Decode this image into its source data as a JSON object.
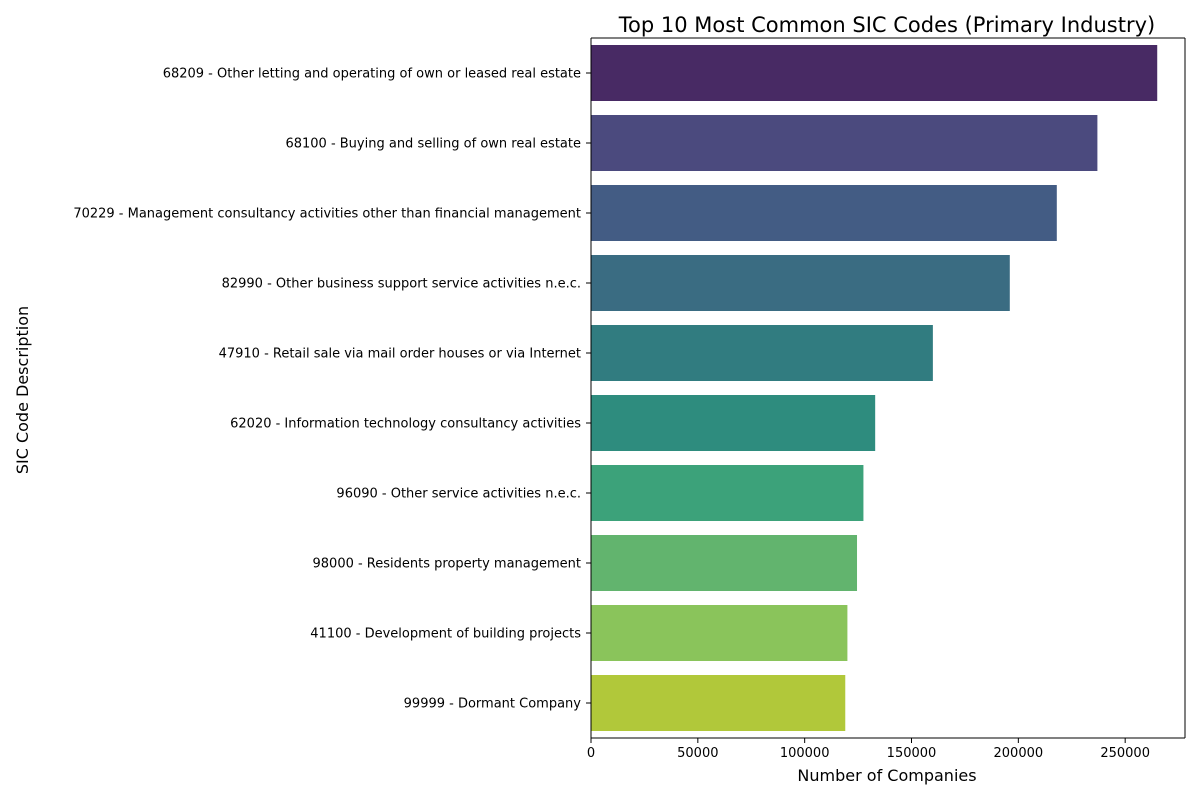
{
  "chart_data": {
    "type": "bar",
    "orientation": "horizontal",
    "title": "Top 10 Most Common SIC Codes (Primary Industry)",
    "xlabel": "Number of Companies",
    "ylabel": "SIC Code Description",
    "xlim": [
      0,
      278000
    ],
    "xticks": [
      0,
      50000,
      100000,
      150000,
      200000,
      250000
    ],
    "xtick_labels": [
      "0",
      "50000",
      "100000",
      "150000",
      "200000",
      "250000"
    ],
    "grid": false,
    "categories": [
      "68209 - Other letting and operating of own or leased real estate",
      "68100 - Buying and selling of own real estate",
      "70229 - Management consultancy activities other than financial management",
      "82990 - Other business support service activities n.e.c.",
      "47910 - Retail sale via mail order houses or via Internet",
      "62020 - Information technology consultancy activities",
      "96090 - Other service activities n.e.c.",
      "98000 - Residents property management",
      "41100 - Development of building projects",
      "99999 - Dormant Company"
    ],
    "values": [
      265000,
      237000,
      218000,
      196000,
      160000,
      133000,
      127500,
      124500,
      120000,
      119000
    ],
    "colors": [
      "#482a64",
      "#4b4a7e",
      "#435c84",
      "#3a6c82",
      "#317c80",
      "#2e8c7e",
      "#3ca27a",
      "#62b46e",
      "#8ac45b",
      "#b1c83a"
    ]
  }
}
